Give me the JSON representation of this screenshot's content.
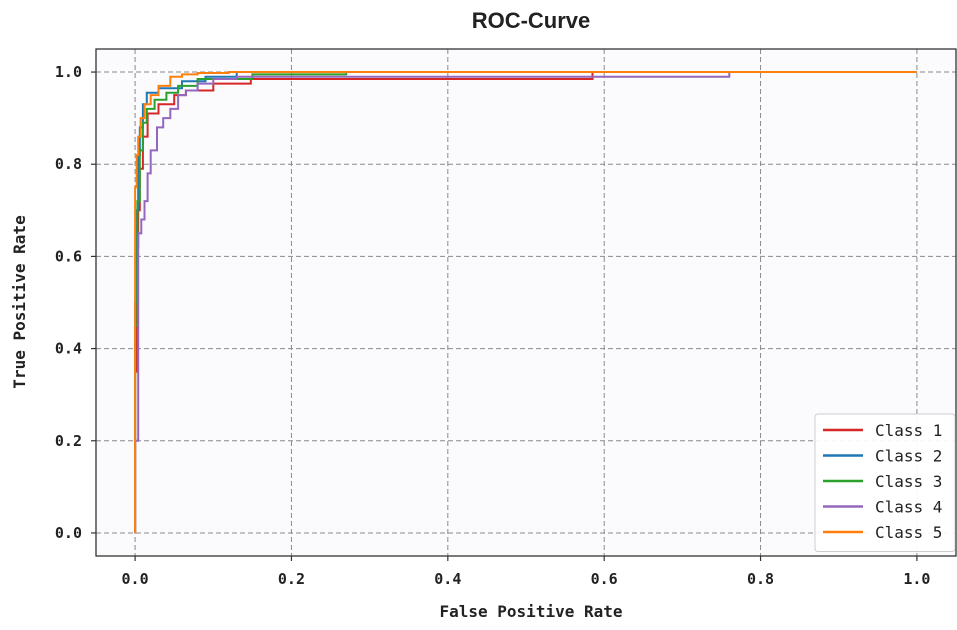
{
  "chart_data": {
    "type": "line",
    "title": "ROC-Curve",
    "xlabel": "False Positive Rate",
    "ylabel": "True Positive Rate",
    "xlim": [
      -0.05,
      1.05
    ],
    "ylim": [
      -0.05,
      1.05
    ],
    "xticks": [
      0.0,
      0.2,
      0.4,
      0.6,
      0.8,
      1.0
    ],
    "xtick_labels": [
      "0.0",
      "0.2",
      "0.4",
      "0.6",
      "0.8",
      "1.0"
    ],
    "yticks": [
      0.0,
      0.2,
      0.4,
      0.6,
      0.8,
      1.0
    ],
    "ytick_labels": [
      "0.0",
      "0.2",
      "0.4",
      "0.6",
      "0.8",
      "1.0"
    ],
    "grid": true,
    "legend_position": "lower-right",
    "series": [
      {
        "name": "Class 1",
        "color": "#d62728",
        "x": [
          0.0,
          0.0,
          0.002,
          0.002,
          0.004,
          0.004,
          0.006,
          0.006,
          0.01,
          0.01,
          0.016,
          0.016,
          0.03,
          0.03,
          0.05,
          0.05,
          0.065,
          0.065,
          0.1,
          0.1,
          0.148,
          0.148,
          0.585,
          0.585,
          1.0
        ],
        "y": [
          0.0,
          0.35,
          0.35,
          0.62,
          0.62,
          0.7,
          0.7,
          0.79,
          0.79,
          0.86,
          0.86,
          0.91,
          0.91,
          0.93,
          0.93,
          0.95,
          0.95,
          0.96,
          0.96,
          0.975,
          0.975,
          0.985,
          0.985,
          1.0,
          1.0
        ]
      },
      {
        "name": "Class 2",
        "color": "#1f77b4",
        "x": [
          0.0,
          0.0,
          0.002,
          0.002,
          0.004,
          0.004,
          0.006,
          0.006,
          0.01,
          0.01,
          0.015,
          0.015,
          0.03,
          0.03,
          0.06,
          0.06,
          0.09,
          0.09,
          0.13,
          0.13,
          1.0
        ],
        "y": [
          0.0,
          0.5,
          0.5,
          0.7,
          0.7,
          0.82,
          0.82,
          0.88,
          0.88,
          0.93,
          0.93,
          0.955,
          0.955,
          0.965,
          0.965,
          0.98,
          0.98,
          0.99,
          0.99,
          1.0,
          1.0
        ]
      },
      {
        "name": "Class 3",
        "color": "#2ca02c",
        "x": [
          0.0,
          0.0,
          0.003,
          0.003,
          0.006,
          0.006,
          0.01,
          0.01,
          0.015,
          0.015,
          0.025,
          0.025,
          0.04,
          0.04,
          0.055,
          0.055,
          0.08,
          0.08,
          0.15,
          0.15,
          0.27,
          0.27,
          1.0
        ],
        "y": [
          0.0,
          0.45,
          0.45,
          0.72,
          0.72,
          0.83,
          0.83,
          0.89,
          0.89,
          0.92,
          0.92,
          0.94,
          0.94,
          0.955,
          0.955,
          0.97,
          0.97,
          0.985,
          0.985,
          0.995,
          0.995,
          1.0,
          1.0
        ]
      },
      {
        "name": "Class 4",
        "color": "#9467bd",
        "x": [
          0.0,
          0.0,
          0.004,
          0.004,
          0.008,
          0.008,
          0.012,
          0.012,
          0.016,
          0.016,
          0.02,
          0.02,
          0.028,
          0.028,
          0.036,
          0.036,
          0.045,
          0.045,
          0.055,
          0.055,
          0.065,
          0.065,
          0.08,
          0.08,
          0.1,
          0.1,
          0.13,
          0.13,
          0.76,
          0.76,
          1.0
        ],
        "y": [
          0.0,
          0.2,
          0.2,
          0.65,
          0.65,
          0.68,
          0.68,
          0.72,
          0.72,
          0.78,
          0.78,
          0.83,
          0.83,
          0.88,
          0.88,
          0.9,
          0.9,
          0.92,
          0.92,
          0.95,
          0.95,
          0.96,
          0.96,
          0.975,
          0.975,
          0.985,
          0.985,
          0.99,
          0.99,
          1.0,
          1.0
        ]
      },
      {
        "name": "Class 5",
        "color": "#ff7f0e",
        "x": [
          0.0,
          0.0,
          0.002,
          0.002,
          0.004,
          0.004,
          0.007,
          0.007,
          0.012,
          0.012,
          0.02,
          0.02,
          0.03,
          0.03,
          0.045,
          0.045,
          0.06,
          0.06,
          0.08,
          0.08,
          0.12,
          0.12,
          1.0
        ],
        "y": [
          0.0,
          0.75,
          0.75,
          0.82,
          0.82,
          0.86,
          0.86,
          0.9,
          0.9,
          0.93,
          0.93,
          0.95,
          0.95,
          0.97,
          0.97,
          0.99,
          0.99,
          0.995,
          0.995,
          0.998,
          0.998,
          1.0,
          1.0
        ]
      }
    ]
  }
}
